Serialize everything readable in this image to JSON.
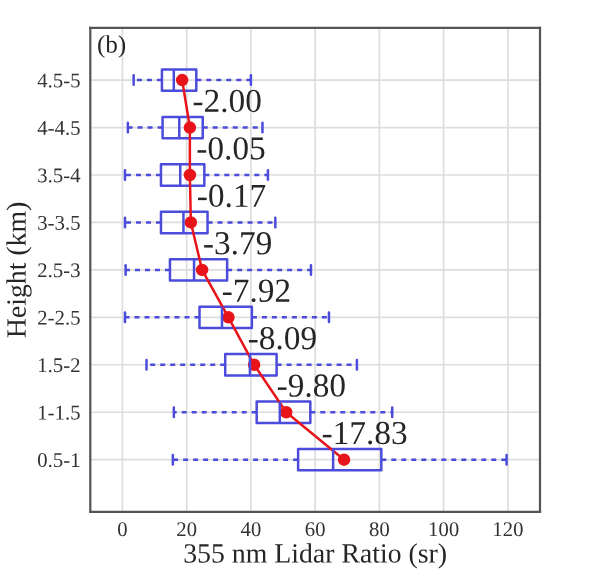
{
  "chart_data": {
    "type": "box",
    "orientation": "horizontal",
    "title": "(b)",
    "xlabel": "355 nm Lidar Ratio (sr)",
    "ylabel": "Height (km)",
    "categories": [
      "4.5-5",
      "4-4.5",
      "3.5-4",
      "3-3.5",
      "2.5-3",
      "2-2.5",
      "1.5-2",
      "1-1.5",
      "0.5-1"
    ],
    "color": "#4b4bdc",
    "boxes": [
      {
        "low": 3.5,
        "q1": 12.3,
        "median": 16,
        "q3": 23,
        "high": 40
      },
      {
        "low": 1.7,
        "q1": 12.5,
        "median": 17.7,
        "q3": 25,
        "high": 43.6
      },
      {
        "low": 0.8,
        "q1": 12,
        "median": 18,
        "q3": 25.5,
        "high": 45.3
      },
      {
        "low": 0.8,
        "q1": 12,
        "median": 19,
        "q3": 26.5,
        "high": 47.6
      },
      {
        "low": 1,
        "q1": 14.8,
        "median": 22.3,
        "q3": 32.6,
        "high": 58.7
      },
      {
        "low": 0.8,
        "q1": 24,
        "median": 31,
        "q3": 40.3,
        "high": 64.3
      },
      {
        "low": 7.5,
        "q1": 32,
        "median": 39.7,
        "q3": 48,
        "high": 73
      },
      {
        "low": 16,
        "q1": 41.8,
        "median": 49,
        "q3": 58.5,
        "high": 84
      },
      {
        "low": 15.7,
        "q1": 54.7,
        "median": 65.6,
        "q3": 80.6,
        "high": 119.6
      }
    ],
    "series": [
      {
        "type": "line",
        "color": "#e8141a",
        "marker": "circle",
        "values": [
          18.6,
          21,
          21,
          21.3,
          24.8,
          33,
          41,
          51,
          69
        ]
      }
    ],
    "annotations": [
      "-2.00",
      "-0.05",
      "-0.17",
      "-3.79",
      "-7.92",
      "-8.09",
      "-9.80",
      "-17.83"
    ],
    "xlim": [
      -10,
      130
    ],
    "xticks": [
      0,
      20,
      40,
      60,
      80,
      100,
      120
    ],
    "grid": true
  }
}
